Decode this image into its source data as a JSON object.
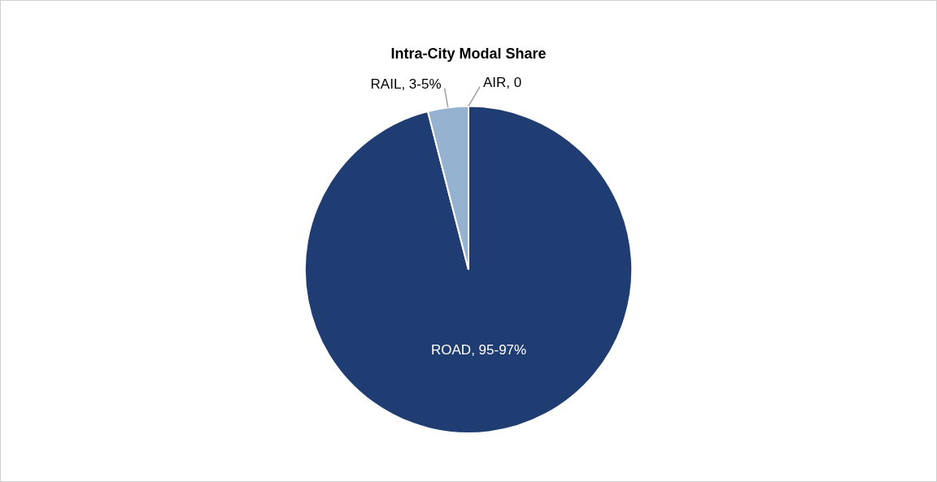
{
  "chart_data": {
    "type": "pie",
    "title": "Intra-City Modal Share",
    "categories": [
      "ROAD, 95-97%",
      "RAIL, 3-5%",
      "AIR, 0"
    ],
    "values": [
      96,
      4,
      0
    ],
    "colors": [
      "#1f3d73",
      "#95b3d0",
      "#c8c8c8"
    ],
    "legend": false
  }
}
